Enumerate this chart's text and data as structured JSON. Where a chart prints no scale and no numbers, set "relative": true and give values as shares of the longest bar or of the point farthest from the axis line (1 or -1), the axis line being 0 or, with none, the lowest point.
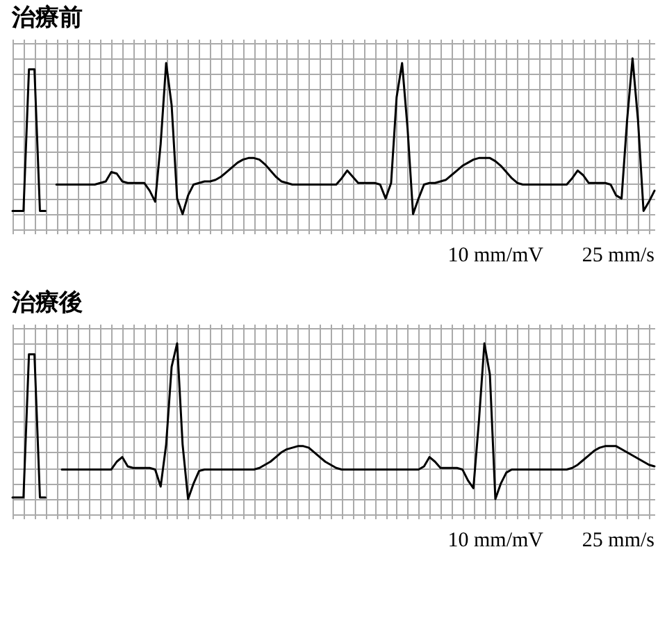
{
  "chart_data": [
    {
      "type": "line",
      "title": "治療前",
      "relative": true,
      "grid": true,
      "categories": [
        null,
        null,
        null,
        null,
        null,
        null,
        null,
        null,
        null,
        null,
        null,
        null,
        null,
        null,
        null,
        null,
        null,
        null,
        null,
        null,
        null,
        null,
        null,
        null,
        null,
        null,
        null,
        null,
        null,
        null,
        null,
        null,
        null,
        null,
        null,
        null,
        null,
        null,
        null,
        null,
        null,
        null,
        null,
        null,
        null,
        null,
        null,
        null,
        null,
        null,
        null,
        null,
        null,
        null,
        null,
        null,
        null,
        null,
        null,
        null,
        null,
        null,
        null,
        null,
        null,
        null,
        null,
        null,
        null,
        null,
        null,
        null,
        null,
        null,
        null,
        null,
        null,
        null,
        null,
        null,
        null,
        null,
        null,
        null,
        null,
        null,
        null,
        null,
        null,
        null,
        null,
        null,
        null,
        null,
        null,
        null,
        null,
        null,
        null,
        null,
        null,
        null,
        null,
        null,
        null,
        null,
        null,
        null,
        null,
        null,
        null,
        null,
        null,
        null,
        null,
        null,
        null,
        null
      ],
      "series": [
        {
          "color": "#000000",
          "values": [
            0.02,
            0.02,
            0.02,
            0.93,
            0.93,
            0.02,
            0.02,
            null,
            null,
            null,
            null,
            null,
            null,
            null,
            null,
            null,
            null,
            null,
            null,
            null,
            null,
            null,
            null,
            null,
            null,
            null,
            null,
            null,
            null,
            null,
            null,
            null,
            null,
            null,
            null,
            null,
            null,
            null,
            null,
            null,
            null,
            null,
            null,
            null,
            null,
            null,
            null,
            null,
            null,
            null,
            null,
            null,
            null,
            null,
            null,
            null,
            null,
            null,
            null,
            null,
            null,
            null,
            null,
            null,
            null,
            null,
            null,
            null,
            null,
            null,
            null,
            null,
            null,
            null,
            null,
            null,
            null,
            null,
            null,
            null,
            null,
            null,
            null,
            null,
            null,
            null,
            null,
            null,
            null,
            null,
            null,
            null,
            null,
            null,
            null,
            null,
            null,
            null,
            null,
            null,
            null,
            null,
            null,
            null,
            null,
            null,
            null,
            null,
            null,
            null,
            null,
            null,
            null,
            null,
            null,
            null,
            null,
            null
          ]
        },
        {
          "color": "#000000",
          "values": [
            null,
            null,
            null,
            null,
            null,
            null,
            null,
            null,
            0.19,
            0.19,
            0.19,
            0.19,
            0.19,
            0.19,
            0.19,
            0.19,
            0.2,
            0.21,
            0.27,
            0.26,
            0.21,
            0.2,
            0.2,
            0.2,
            0.2,
            0.15,
            0.08,
            0.45,
            0.97,
            0.7,
            0.1,
            0,
            0.12,
            0.19,
            0.2,
            0.21,
            0.21,
            0.22,
            0.24,
            0.27,
            0.3,
            0.33,
            0.35,
            0.36,
            0.36,
            0.35,
            0.32,
            0.28,
            0.24,
            0.21,
            0.2,
            0.19,
            0.19,
            0.19,
            0.19,
            0.19,
            0.19,
            0.19,
            0.19,
            0.19,
            0.23,
            0.28,
            0.24,
            0.2,
            0.2,
            0.2,
            0.2,
            0.19,
            0.1,
            0.2,
            0.75,
            0.97,
            0.55,
            0,
            0.1,
            0.19,
            0.2,
            0.2,
            0.21,
            0.22,
            0.25,
            0.28,
            0.31,
            0.33,
            0.35,
            0.36,
            0.36,
            0.36,
            0.34,
            0.31,
            0.27,
            0.23,
            0.2,
            0.19,
            0.19,
            0.19,
            0.19,
            0.19,
            0.19,
            0.19,
            0.19,
            0.19,
            0.23,
            0.28,
            0.25,
            0.2,
            0.2,
            0.2,
            0.2,
            0.19,
            0.12,
            0.1,
            0.6,
            1,
            0.6,
            0.02,
            0.08,
            0.15
          ]
        }
      ],
      "annotations": [
        "10 mm/mV",
        "25 mm/s"
      ]
    },
    {
      "type": "line",
      "title": "治療後",
      "relative": true,
      "grid": true,
      "categories": [
        null,
        null,
        null,
        null,
        null,
        null,
        null,
        null,
        null,
        null,
        null,
        null,
        null,
        null,
        null,
        null,
        null,
        null,
        null,
        null,
        null,
        null,
        null,
        null,
        null,
        null,
        null,
        null,
        null,
        null,
        null,
        null,
        null,
        null,
        null,
        null,
        null,
        null,
        null,
        null,
        null,
        null,
        null,
        null,
        null,
        null,
        null,
        null,
        null,
        null,
        null,
        null,
        null,
        null,
        null,
        null,
        null,
        null,
        null,
        null,
        null,
        null,
        null,
        null,
        null,
        null,
        null,
        null,
        null,
        null,
        null,
        null,
        null,
        null,
        null,
        null,
        null,
        null,
        null,
        null,
        null,
        null,
        null,
        null,
        null,
        null,
        null,
        null,
        null,
        null,
        null,
        null,
        null,
        null,
        null,
        null,
        null,
        null,
        null,
        null,
        null,
        null,
        null,
        null,
        null,
        null,
        null,
        null,
        null,
        null,
        null,
        null,
        null,
        null,
        null,
        null,
        null,
        null
      ],
      "series": [
        {
          "color": "#000000",
          "values": [
            0.01,
            0.01,
            0.01,
            0.93,
            0.93,
            0.01,
            0.01,
            null,
            null,
            null,
            null,
            null,
            null,
            null,
            null,
            null,
            null,
            null,
            null,
            null,
            null,
            null,
            null,
            null,
            null,
            null,
            null,
            null,
            null,
            null,
            null,
            null,
            null,
            null,
            null,
            null,
            null,
            null,
            null,
            null,
            null,
            null,
            null,
            null,
            null,
            null,
            null,
            null,
            null,
            null,
            null,
            null,
            null,
            null,
            null,
            null,
            null,
            null,
            null,
            null,
            null,
            null,
            null,
            null,
            null,
            null,
            null,
            null,
            null,
            null,
            null,
            null,
            null,
            null,
            null,
            null,
            null,
            null,
            null,
            null,
            null,
            null,
            null,
            null,
            null,
            null,
            null,
            null,
            null,
            null,
            null,
            null,
            null,
            null,
            null,
            null,
            null,
            null,
            null,
            null,
            null,
            null,
            null,
            null,
            null,
            null,
            null,
            null,
            null,
            null,
            null,
            null,
            null,
            null,
            null,
            null,
            null,
            null
          ]
        },
        {
          "color": "#000000",
          "values": [
            null,
            null,
            null,
            null,
            null,
            null,
            null,
            null,
            null,
            0.19,
            0.19,
            0.19,
            0.19,
            0.19,
            0.19,
            0.19,
            0.19,
            0.19,
            0.19,
            0.24,
            0.27,
            0.21,
            0.2,
            0.2,
            0.2,
            0.2,
            0.19,
            0.08,
            0.35,
            0.85,
            1,
            0.35,
            0,
            0.1,
            0.18,
            0.19,
            0.19,
            0.19,
            0.19,
            0.19,
            0.19,
            0.19,
            0.19,
            0.19,
            0.19,
            0.2,
            0.22,
            0.24,
            0.27,
            0.3,
            0.32,
            0.33,
            0.34,
            0.34,
            0.33,
            0.3,
            0.27,
            0.24,
            0.22,
            0.2,
            0.19,
            0.19,
            0.19,
            0.19,
            0.19,
            0.19,
            0.19,
            0.19,
            0.19,
            0.19,
            0.19,
            0.19,
            0.19,
            0.19,
            0.19,
            0.21,
            0.27,
            0.24,
            0.2,
            0.2,
            0.2,
            0.2,
            0.19,
            0.12,
            0.07,
            0.5,
            1,
            0.8,
            0,
            0.1,
            0.17,
            0.19,
            0.19,
            0.19,
            0.19,
            0.19,
            0.19,
            0.19,
            0.19,
            0.19,
            0.19,
            0.19,
            0.2,
            0.22,
            0.25,
            0.28,
            0.31,
            0.33,
            0.34,
            0.34,
            0.34,
            0.32,
            0.3,
            0.28,
            0.26,
            0.24,
            0.22,
            0.21
          ]
        }
      ],
      "annotations": [
        "10 mm/mV",
        "25 mm/s"
      ]
    }
  ]
}
